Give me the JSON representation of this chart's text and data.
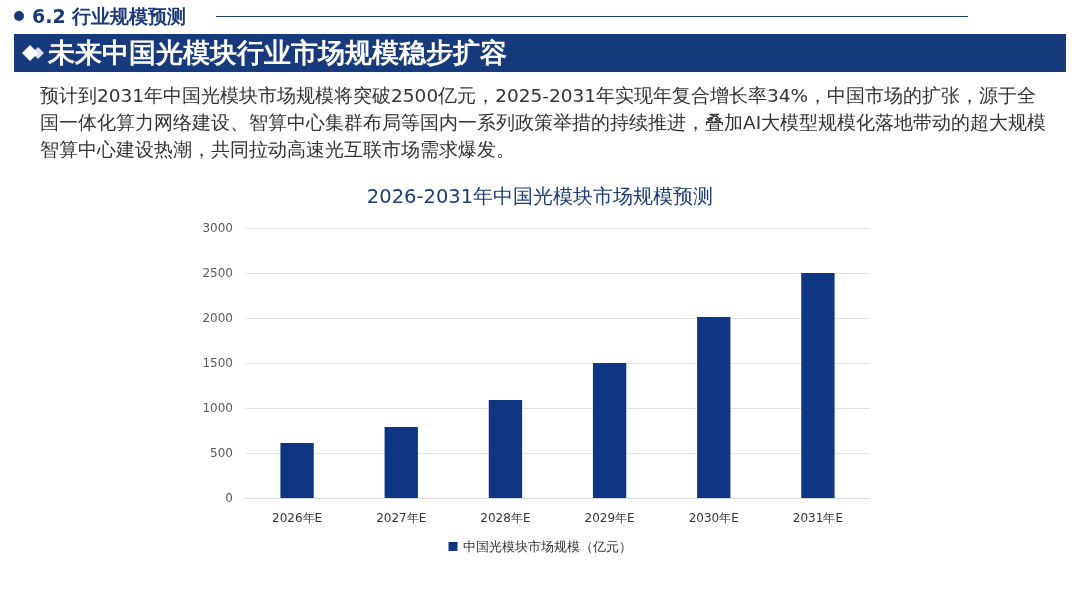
{
  "chart_data": {
    "type": "bar",
    "title": "2026-2031年中国光模块市场规模预测",
    "annotations": [
      "6.2 行业规模预测",
      "未来中国光模块行业市场规模稳步扩容",
      "预计到2031年中国光模块市场规模将突破2500亿元，2025-2031年实现年复合增长率34%，中国市场的扩张，源于全国一体化算力网络建设、智算中心集群布局等国内一系列政策举措的持续推进，叠加AI大模型规模化落地带动的超大规模智算中心建设热潮，共同拉动高速光互联市场需求爆发。"
    ],
    "categories": [
      "2026年E",
      "2027年E",
      "2028年E",
      "2029年E",
      "2030年E",
      "2031年E"
    ],
    "series": [
      {
        "name": "中国光模块市场规模（亿元）",
        "color": "#0f3683",
        "values": [
          610,
          790,
          1090,
          1500,
          2010,
          2500
        ]
      }
    ],
    "ylim": [
      0,
      3000
    ],
    "yticks": [
      0,
      500,
      1000,
      1500,
      2000,
      2500,
      3000
    ],
    "grid": "y",
    "legend": "bottom"
  }
}
